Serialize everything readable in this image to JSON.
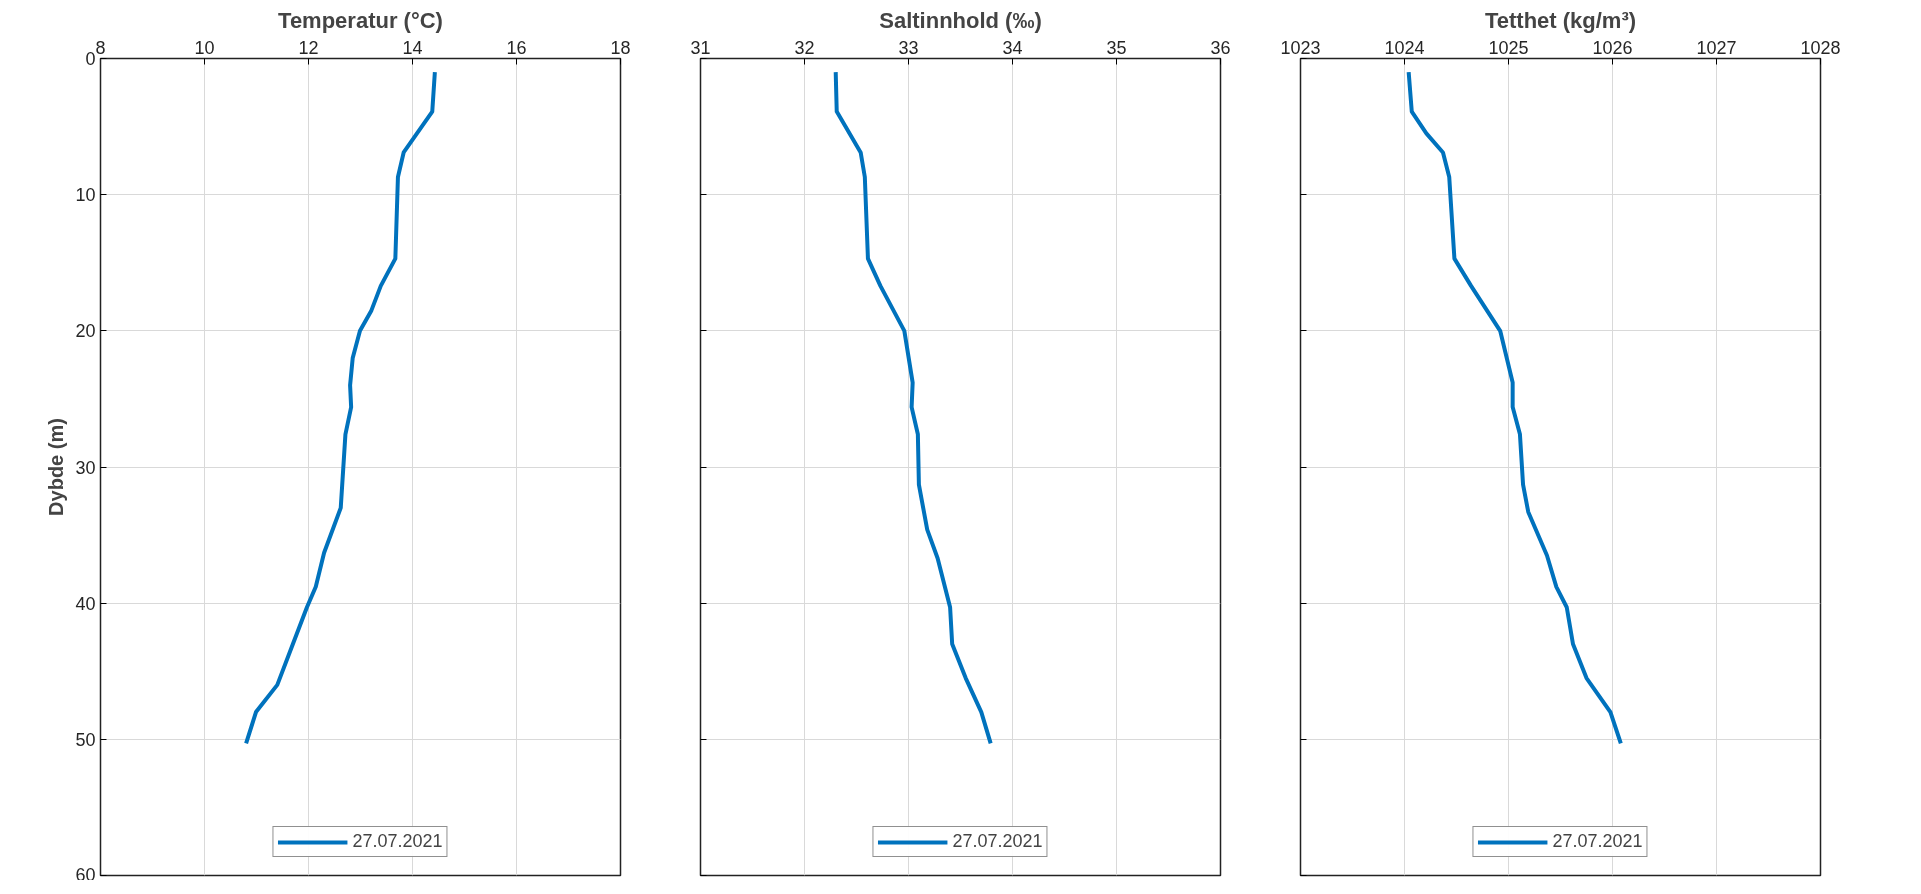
{
  "chart_data": [
    {
      "type": "line",
      "title": "Temperatur (°C)",
      "ylabel": "Dybde (m)",
      "xlim": [
        8,
        18
      ],
      "xticks": [
        8,
        10,
        12,
        14,
        16,
        18
      ],
      "ylim": [
        60,
        0
      ],
      "yticks": [
        0,
        10,
        20,
        30,
        40,
        50,
        60
      ],
      "grid": true,
      "legend": "bottom",
      "line_style": "solid",
      "series": [
        {
          "name": "27.07.2021",
          "color": "#0072bd",
          "x": [
            14.43,
            14.38,
            13.83,
            13.72,
            13.67,
            13.39,
            13.21,
            12.99,
            12.85,
            12.8,
            12.82,
            12.71,
            12.62,
            12.3,
            12.14,
            11.97,
            11.7,
            11.4,
            10.99,
            10.8
          ],
          "values": [
            1,
            3.9,
            6.9,
            8.7,
            14.7,
            16.7,
            18.5,
            20,
            22,
            24,
            25.6,
            27.6,
            33,
            36.3,
            38.8,
            40.3,
            43,
            46,
            48,
            50.3
          ]
        }
      ]
    },
    {
      "type": "line",
      "title": "Saltinnhold (‰)",
      "xlim": [
        31,
        36
      ],
      "xticks": [
        31,
        32,
        33,
        34,
        35,
        36
      ],
      "ylim": [
        60,
        0
      ],
      "yticks": [
        0,
        10,
        20,
        30,
        40,
        50,
        60
      ],
      "tick_labels": "x",
      "grid": true,
      "legend": "bottom",
      "line_style": "solid",
      "series": [
        {
          "name": "27.07.2021",
          "color": "#0072bd",
          "x": [
            32.3,
            32.31,
            32.54,
            32.58,
            32.61,
            32.73,
            32.96,
            33.04,
            33.03,
            33.09,
            33.1,
            33.18,
            33.28,
            33.4,
            33.42,
            33.55,
            33.7,
            33.79
          ],
          "values": [
            1,
            3.9,
            6.9,
            8.7,
            14.7,
            16.7,
            20,
            23.8,
            25.6,
            27.6,
            31.3,
            34.6,
            36.7,
            40.3,
            43,
            45.5,
            48,
            50.3
          ]
        }
      ]
    },
    {
      "type": "line",
      "title": "Tetthet (kg/m³)",
      "xlim": [
        1023,
        1028
      ],
      "xticks": [
        1023,
        1024,
        1025,
        1026,
        1027,
        1028
      ],
      "ylim": [
        60,
        0
      ],
      "yticks": [
        0,
        10,
        20,
        30,
        40,
        50,
        60
      ],
      "tick_labels": "x",
      "grid": true,
      "legend": "bottom",
      "line_style": "solid",
      "series": [
        {
          "name": "27.07.2021",
          "color": "#0072bd",
          "x": [
            1024.04,
            1024.07,
            1024.21,
            1024.37,
            1024.43,
            1024.48,
            1024.64,
            1024.92,
            1025.04,
            1025.04,
            1025.11,
            1025.14,
            1025.19,
            1025.37,
            1025.46,
            1025.56,
            1025.62,
            1025.75,
            1025.98,
            1026.08
          ],
          "values": [
            1,
            3.9,
            5.5,
            6.9,
            8.7,
            14.7,
            16.7,
            20,
            23.8,
            25.6,
            27.6,
            31.3,
            33.3,
            36.5,
            38.8,
            40.3,
            43,
            45.5,
            48,
            50.3
          ]
        }
      ]
    }
  ]
}
